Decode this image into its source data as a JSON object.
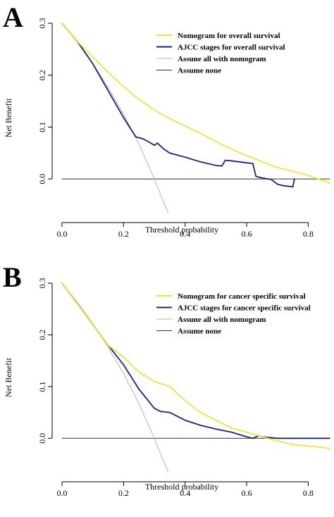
{
  "chart_data": [
    {
      "type": "line",
      "panel": "A",
      "xlabel": "Threshold probability",
      "ylabel": "Net Benefit",
      "xlim": [
        0,
        0.87
      ],
      "ylim": [
        -0.065,
        0.3
      ],
      "xticks": [
        0.0,
        0.2,
        0.4,
        0.6,
        0.8
      ],
      "xtick_labels": [
        "0.0",
        "0.2",
        "0.4",
        "0.6",
        "0.8"
      ],
      "yticks": [
        0.0,
        0.1,
        0.2,
        0.3
      ],
      "ytick_labels": [
        "0.0",
        "0.1",
        "0.2",
        "0.3"
      ],
      "legend_position": "top-right",
      "series": [
        {
          "name": "Nomogram for overall survival",
          "color": "#f2e23a",
          "x": [
            0.0,
            0.05,
            0.1,
            0.15,
            0.2,
            0.25,
            0.3,
            0.35,
            0.4,
            0.45,
            0.5,
            0.55,
            0.6,
            0.65,
            0.7,
            0.75,
            0.8,
            0.87
          ],
          "y": [
            0.3,
            0.265,
            0.235,
            0.205,
            0.178,
            0.153,
            0.133,
            0.116,
            0.102,
            0.088,
            0.072,
            0.058,
            0.045,
            0.033,
            0.022,
            0.015,
            0.007,
            -0.008
          ]
        },
        {
          "name": "AJCC stages for overall survival",
          "color": "#1a237e",
          "x": [
            0.0,
            0.05,
            0.1,
            0.15,
            0.2,
            0.24,
            0.26,
            0.28,
            0.3,
            0.31,
            0.33,
            0.35,
            0.4,
            0.45,
            0.5,
            0.52,
            0.53,
            0.55,
            0.6,
            0.62,
            0.63,
            0.65,
            0.68,
            0.7,
            0.72,
            0.75,
            0.755
          ],
          "y": [
            0.3,
            0.265,
            0.222,
            0.17,
            0.118,
            0.081,
            0.078,
            0.072,
            0.065,
            0.069,
            0.058,
            0.05,
            0.042,
            0.033,
            0.026,
            0.025,
            0.036,
            0.035,
            0.031,
            0.03,
            0.005,
            0.002,
            -0.001,
            -0.01,
            -0.013,
            -0.015,
            0.0
          ]
        },
        {
          "name": "Assune all with nomogram",
          "color": "#b4b4b4",
          "x": [
            0.0,
            0.05,
            0.1,
            0.15,
            0.2,
            0.25,
            0.3,
            0.33,
            0.345
          ],
          "y": [
            0.3,
            0.263,
            0.222,
            0.176,
            0.125,
            0.067,
            0.0,
            -0.045,
            -0.065
          ]
        },
        {
          "name": "Assume none",
          "color": "#333333",
          "x": [
            0.0,
            0.87
          ],
          "y": [
            0.0,
            0.0
          ]
        }
      ]
    },
    {
      "type": "line",
      "panel": "B",
      "xlabel": "Threshold probability",
      "ylabel": "Net Benefit",
      "xlim": [
        0,
        0.87
      ],
      "ylim": [
        -0.065,
        0.3
      ],
      "xticks": [
        0.0,
        0.2,
        0.4,
        0.6,
        0.8
      ],
      "xtick_labels": [
        "0.0",
        "0.2",
        "0.4",
        "0.6",
        "0.8"
      ],
      "yticks": [
        0.0,
        0.1,
        0.2,
        0.3
      ],
      "ytick_labels": [
        "0.0",
        "0.1",
        "0.2",
        "0.3"
      ],
      "legend_position": "top-right",
      "series": [
        {
          "name": "Nomogram for cancer specific survival",
          "color": "#f2e23a",
          "x": [
            0.0,
            0.05,
            0.1,
            0.15,
            0.2,
            0.25,
            0.3,
            0.35,
            0.4,
            0.45,
            0.5,
            0.55,
            0.6,
            0.65,
            0.7,
            0.75,
            0.8,
            0.85,
            0.87
          ],
          "y": [
            0.3,
            0.26,
            0.22,
            0.18,
            0.157,
            0.128,
            0.11,
            0.1,
            0.073,
            0.05,
            0.035,
            0.02,
            0.012,
            0.003,
            -0.005,
            -0.012,
            -0.015,
            -0.018,
            -0.02
          ]
        },
        {
          "name": "AJCC stages for cancer specific survival",
          "color": "#1a237e",
          "x": [
            0.0,
            0.05,
            0.1,
            0.15,
            0.2,
            0.25,
            0.28,
            0.3,
            0.32,
            0.35,
            0.4,
            0.45,
            0.5,
            0.55,
            0.6,
            0.62,
            0.64,
            0.65,
            0.7,
            0.75,
            0.8,
            0.87
          ],
          "y": [
            0.3,
            0.26,
            0.22,
            0.18,
            0.142,
            0.095,
            0.073,
            0.058,
            0.052,
            0.05,
            0.035,
            0.025,
            0.018,
            0.012,
            0.003,
            0.0,
            0.005,
            0.003,
            0.0,
            0.0,
            0.0,
            0.0
          ]
        },
        {
          "name": "Assune all with nomogram",
          "color": "#b4b4b4",
          "x": [
            0.0,
            0.05,
            0.1,
            0.15,
            0.2,
            0.25,
            0.3,
            0.33,
            0.345
          ],
          "y": [
            0.3,
            0.263,
            0.222,
            0.176,
            0.125,
            0.067,
            0.0,
            -0.045,
            -0.065
          ]
        },
        {
          "name": "Assume none",
          "color": "#333333",
          "x": [
            0.0,
            0.87
          ],
          "y": [
            0.0,
            0.0
          ]
        }
      ]
    }
  ]
}
